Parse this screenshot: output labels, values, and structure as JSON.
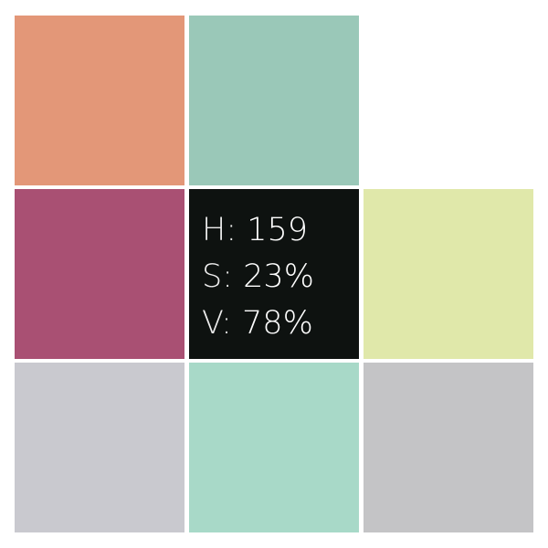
{
  "swatches": [
    {
      "color": "#e39778"
    },
    {
      "color": "#9ac8b8"
    },
    {
      "color": null
    },
    {
      "color": "#a95073"
    },
    {
      "color": "#0e1210",
      "is_info": true
    },
    {
      "color": "#e0e8aa"
    },
    {
      "color": "#c9c9cf"
    },
    {
      "color": "#a8d9c8"
    },
    {
      "color": "#c4c4c6"
    }
  ],
  "info": {
    "h_key": "H:",
    "h_value": "159",
    "s_key": "S:",
    "s_value": "23%",
    "v_key": "V:",
    "v_value": "78%"
  }
}
